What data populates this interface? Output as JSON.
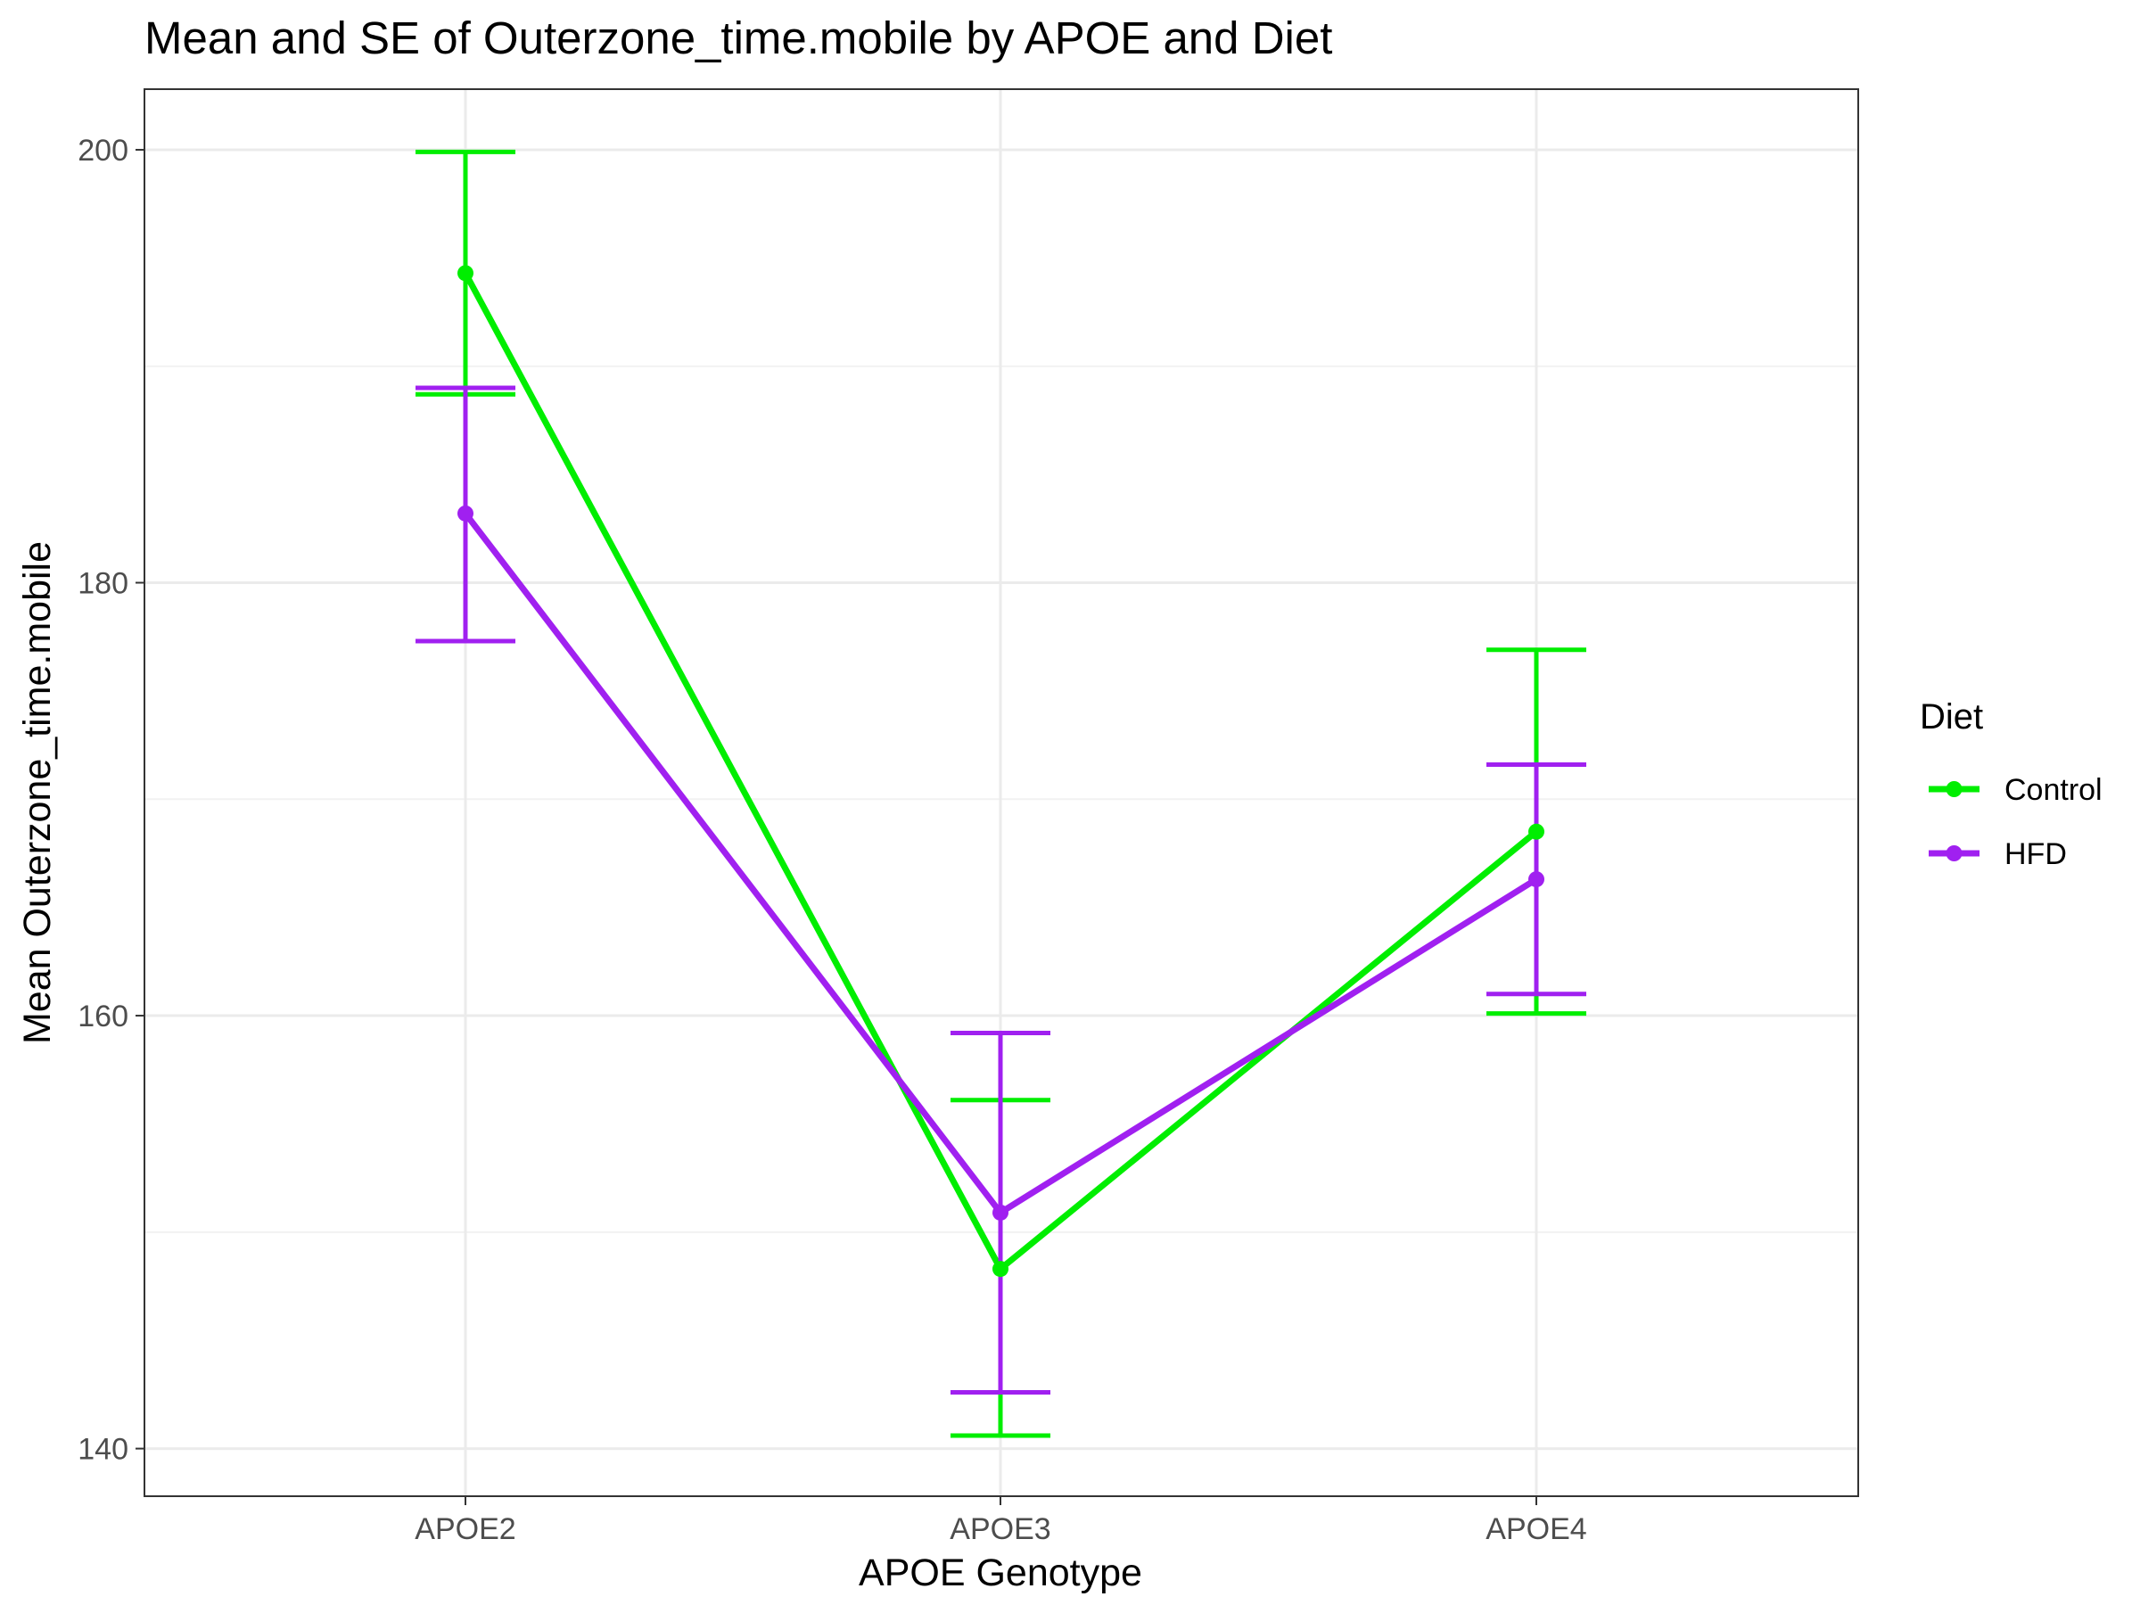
{
  "chart_data": {
    "type": "line",
    "title": "Mean and SE of Outerzone_time.mobile by APOE and Diet",
    "xlabel": "APOE Genotype",
    "ylabel": "Mean Outerzone_time.mobile",
    "categories": [
      "APOE2",
      "APOE3",
      "APOE4"
    ],
    "ylim": [
      137.8,
      202.8
    ],
    "yticks": [
      140,
      160,
      180,
      200
    ],
    "grid": true,
    "legend": {
      "title": "Diet",
      "position": "right"
    },
    "series": [
      {
        "name": "Control",
        "color": "#00ee00",
        "values": [
          194.3,
          148.3,
          168.5
        ],
        "se_low": [
          188.7,
          140.6,
          160.1
        ],
        "se_high": [
          199.9,
          156.1,
          176.9
        ]
      },
      {
        "name": "HFD",
        "color": "#a020f0",
        "values": [
          183.2,
          150.9,
          166.3
        ],
        "se_low": [
          177.3,
          142.6,
          161.0
        ],
        "se_high": [
          189.0,
          159.2,
          171.6
        ]
      }
    ]
  }
}
